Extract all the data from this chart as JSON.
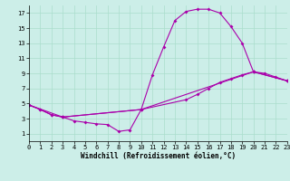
{
  "xlabel": "Windchill (Refroidissement éolien,°C)",
  "bg_color": "#cceee8",
  "line_color": "#aa00aa",
  "xlim": [
    0,
    23
  ],
  "ylim": [
    0,
    18
  ],
  "xticks": [
    0,
    1,
    2,
    3,
    4,
    5,
    6,
    7,
    8,
    9,
    10,
    11,
    12,
    13,
    14,
    15,
    16,
    17,
    18,
    19,
    20,
    21,
    22,
    23
  ],
  "yticks": [
    1,
    3,
    5,
    7,
    9,
    11,
    13,
    15,
    17
  ],
  "curve1_x": [
    0,
    1,
    2,
    3,
    4,
    5,
    6,
    7,
    8,
    9,
    10,
    11,
    12,
    13,
    14,
    15,
    16,
    17,
    18,
    19,
    20,
    21,
    22,
    23
  ],
  "curve1_y": [
    4.8,
    4.2,
    3.5,
    3.2,
    2.7,
    2.5,
    2.3,
    2.2,
    1.3,
    1.5,
    4.2,
    8.8,
    12.5,
    16.0,
    17.2,
    17.5,
    17.5,
    17.0,
    15.2,
    13.0,
    9.2,
    9.0,
    8.5,
    8.0
  ],
  "curve2_x": [
    0,
    1,
    2,
    3,
    10,
    14,
    15,
    16,
    17,
    18,
    19,
    20,
    23
  ],
  "curve2_y": [
    4.8,
    4.2,
    3.5,
    3.2,
    4.2,
    5.5,
    6.2,
    7.0,
    7.8,
    8.3,
    8.8,
    9.2,
    8.0
  ],
  "curve3_x": [
    0,
    3,
    10,
    20,
    23
  ],
  "curve3_y": [
    4.8,
    3.2,
    4.2,
    9.2,
    8.0
  ],
  "grid_color": "#aaddcc",
  "tick_fontsize": 5,
  "xlabel_fontsize": 5.5
}
